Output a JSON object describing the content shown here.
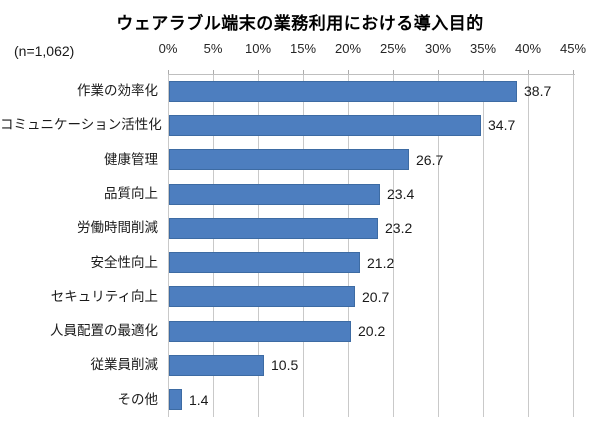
{
  "chart_data": {
    "type": "bar",
    "orientation": "horizontal",
    "title": "ウェアラブル端末の業務利用における導入目的",
    "sample_size_label": "(n=1,062)",
    "categories": [
      "作業の効率化",
      "コミュニケーション活性化",
      "健康管理",
      "品質向上",
      "労働時間削減",
      "安全性向上",
      "セキュリティ向上",
      "人員配置の最適化",
      "従業員削減",
      "その他"
    ],
    "values": [
      38.7,
      34.7,
      26.7,
      23.4,
      23.2,
      21.2,
      20.7,
      20.2,
      10.5,
      1.4
    ],
    "value_labels": [
      "38.7",
      "34.7",
      "26.7",
      "23.4",
      "23.2",
      "21.2",
      "20.7",
      "20.2",
      "10.5",
      "1.4"
    ],
    "x_ticks": [
      "0%",
      "5%",
      "10%",
      "15%",
      "20%",
      "25%",
      "30%",
      "35%",
      "40%",
      "45%"
    ],
    "xlabel": "",
    "ylabel": "",
    "xlim": [
      0,
      45
    ],
    "grid": true,
    "legend_position": "none",
    "colors": {
      "bar_fill": "#4d7ebf",
      "bar_border": "#3d6ba3",
      "gridline": "#c9c9c9",
      "axis_line": "#bfbfbf",
      "tick_mark": "#ababab",
      "text": "#1a1a1a",
      "title": "#000000",
      "background": "#ffffff"
    }
  }
}
